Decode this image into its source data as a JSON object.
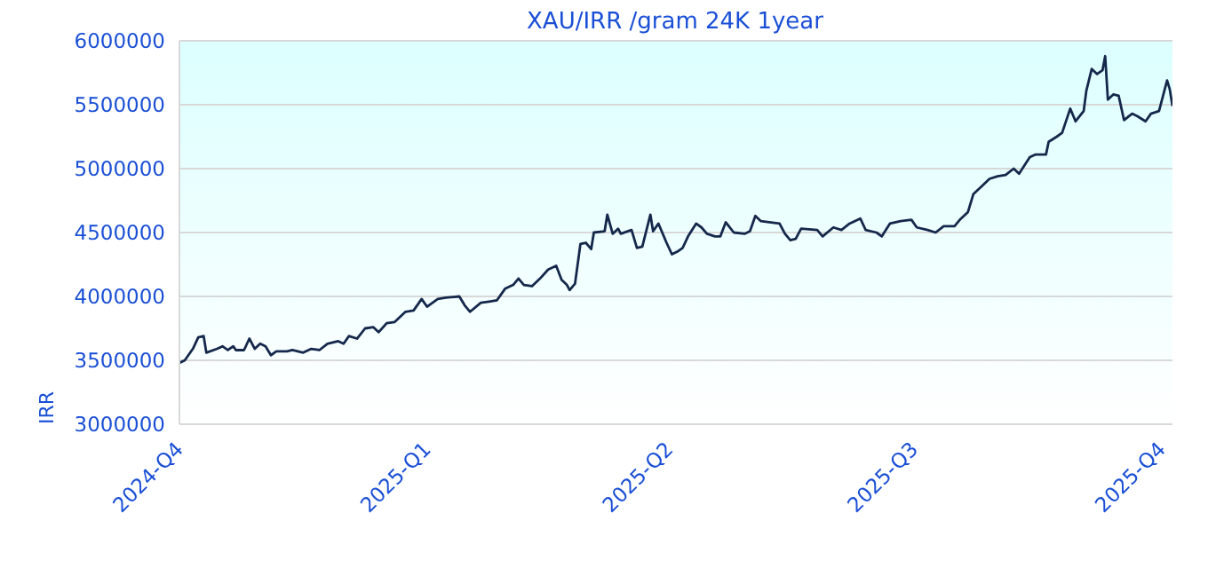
{
  "chart_data": {
    "type": "line",
    "title": "XAU/IRR /gram 24K 1year",
    "ylabel": "IRR",
    "x": [
      "2024-10-01",
      "2024-10-03",
      "2024-10-06",
      "2024-10-08",
      "2024-10-10",
      "2024-10-11",
      "2024-10-15",
      "2024-10-17",
      "2024-10-19",
      "2024-10-21",
      "2024-10-22",
      "2024-10-25",
      "2024-10-27",
      "2024-10-29",
      "2024-10-31",
      "2024-11-02",
      "2024-11-04",
      "2024-11-06",
      "2024-11-10",
      "2024-11-12",
      "2024-11-16",
      "2024-11-19",
      "2024-11-22",
      "2024-11-25",
      "2024-11-29",
      "2024-12-01",
      "2024-12-03",
      "2024-12-06",
      "2024-12-09",
      "2024-12-12",
      "2024-12-14",
      "2024-12-17",
      "2024-12-20",
      "2024-12-24",
      "2024-12-27",
      "2024-12-30",
      "2025-01-01",
      "2025-01-05",
      "2025-01-08",
      "2025-01-13",
      "2025-01-15",
      "2025-01-17",
      "2025-01-21",
      "2025-01-24",
      "2025-01-27",
      "2025-01-30",
      "2025-02-02",
      "2025-02-04",
      "2025-02-06",
      "2025-02-09",
      "2025-02-12",
      "2025-02-15",
      "2025-02-18",
      "2025-02-20",
      "2025-02-22",
      "2025-02-23",
      "2025-02-25",
      "2025-02-27",
      "2025-03-01",
      "2025-03-03",
      "2025-03-04",
      "2025-03-08",
      "2025-03-09",
      "2025-03-11",
      "2025-03-13",
      "2025-03-14",
      "2025-03-18",
      "2025-03-20",
      "2025-03-22",
      "2025-03-25",
      "2025-03-26",
      "2025-03-28",
      "2025-03-31",
      "2025-04-02",
      "2025-04-04",
      "2025-04-06",
      "2025-04-08",
      "2025-04-11",
      "2025-04-13",
      "2025-04-15",
      "2025-04-18",
      "2025-04-20",
      "2025-04-22",
      "2025-04-25",
      "2025-04-29",
      "2025-05-01",
      "2025-05-03",
      "2025-05-05",
      "2025-05-12",
      "2025-05-14",
      "2025-05-16",
      "2025-05-18",
      "2025-05-20",
      "2025-05-26",
      "2025-05-28",
      "2025-06-01",
      "2025-06-04",
      "2025-06-07",
      "2025-06-11",
      "2025-06-13",
      "2025-06-17",
      "2025-06-19",
      "2025-06-22",
      "2025-06-26",
      "2025-06-30",
      "2025-07-02",
      "2025-07-06",
      "2025-07-09",
      "2025-07-12",
      "2025-07-16",
      "2025-07-18",
      "2025-07-21",
      "2025-07-23",
      "2025-07-26",
      "2025-07-29",
      "2025-08-01",
      "2025-08-04",
      "2025-08-07",
      "2025-08-09",
      "2025-08-13",
      "2025-08-15",
      "2025-08-19",
      "2025-08-20",
      "2025-08-23",
      "2025-08-25",
      "2025-08-28",
      "2025-08-30",
      "2025-09-02",
      "2025-09-03",
      "2025-09-05",
      "2025-09-07",
      "2025-09-09",
      "2025-09-10",
      "2025-09-11",
      "2025-09-13",
      "2025-09-15",
      "2025-09-17",
      "2025-09-20",
      "2025-09-22",
      "2025-09-25",
      "2025-09-27",
      "2025-09-30",
      "2025-10-03",
      "2025-10-04",
      "2025-10-05"
    ],
    "series": [
      {
        "color": "#15284b",
        "values": [
          3480000,
          3500000,
          3590000,
          3680000,
          3690000,
          3560000,
          3590000,
          3610000,
          3580000,
          3610000,
          3580000,
          3580000,
          3670000,
          3590000,
          3630000,
          3610000,
          3540000,
          3570000,
          3570000,
          3580000,
          3560000,
          3590000,
          3580000,
          3630000,
          3650000,
          3630000,
          3690000,
          3670000,
          3750000,
          3760000,
          3720000,
          3790000,
          3800000,
          3880000,
          3890000,
          3980000,
          3920000,
          3980000,
          3990000,
          4000000,
          3930000,
          3880000,
          3950000,
          3960000,
          3970000,
          4060000,
          4090000,
          4140000,
          4090000,
          4080000,
          4140000,
          4210000,
          4240000,
          4130000,
          4090000,
          4050000,
          4100000,
          4410000,
          4420000,
          4370000,
          4500000,
          4510000,
          4640000,
          4490000,
          4530000,
          4490000,
          4520000,
          4380000,
          4390000,
          4640000,
          4510000,
          4570000,
          4420000,
          4330000,
          4350000,
          4380000,
          4470000,
          4570000,
          4540000,
          4490000,
          4470000,
          4470000,
          4580000,
          4500000,
          4490000,
          4510000,
          4630000,
          4590000,
          4570000,
          4490000,
          4440000,
          4450000,
          4530000,
          4520000,
          4470000,
          4540000,
          4520000,
          4570000,
          4610000,
          4520000,
          4500000,
          4470000,
          4570000,
          4590000,
          4600000,
          4540000,
          4520000,
          4500000,
          4550000,
          4550000,
          4600000,
          4660000,
          4800000,
          4860000,
          4920000,
          4940000,
          4950000,
          5000000,
          4960000,
          5090000,
          5110000,
          5110000,
          5210000,
          5250000,
          5280000,
          5470000,
          5370000,
          5450000,
          5610000,
          5780000,
          5740000,
          5770000,
          5880000,
          5540000,
          5580000,
          5570000,
          5380000,
          5430000,
          5410000,
          5370000,
          5430000,
          5450000,
          5690000,
          5620000,
          5490000
        ]
      }
    ],
    "xlim": [
      "2024-10-01",
      "2025-10-05"
    ],
    "xticks": [
      {
        "value": "2024-10-01",
        "label": "2024-Q4"
      },
      {
        "value": "2025-01-01",
        "label": "2025-Q1"
      },
      {
        "value": "2025-04-01",
        "label": "2025-Q2"
      },
      {
        "value": "2025-07-01",
        "label": "2025-Q3"
      },
      {
        "value": "2025-10-01",
        "label": "2025-Q4"
      }
    ],
    "ylim": [
      3000000,
      6000000
    ],
    "yticks": [
      3000000,
      3500000,
      4000000,
      4500000,
      5000000,
      5500000,
      6000000
    ],
    "grid": "y",
    "legend": false,
    "marker": "none",
    "line_style": "solid"
  }
}
